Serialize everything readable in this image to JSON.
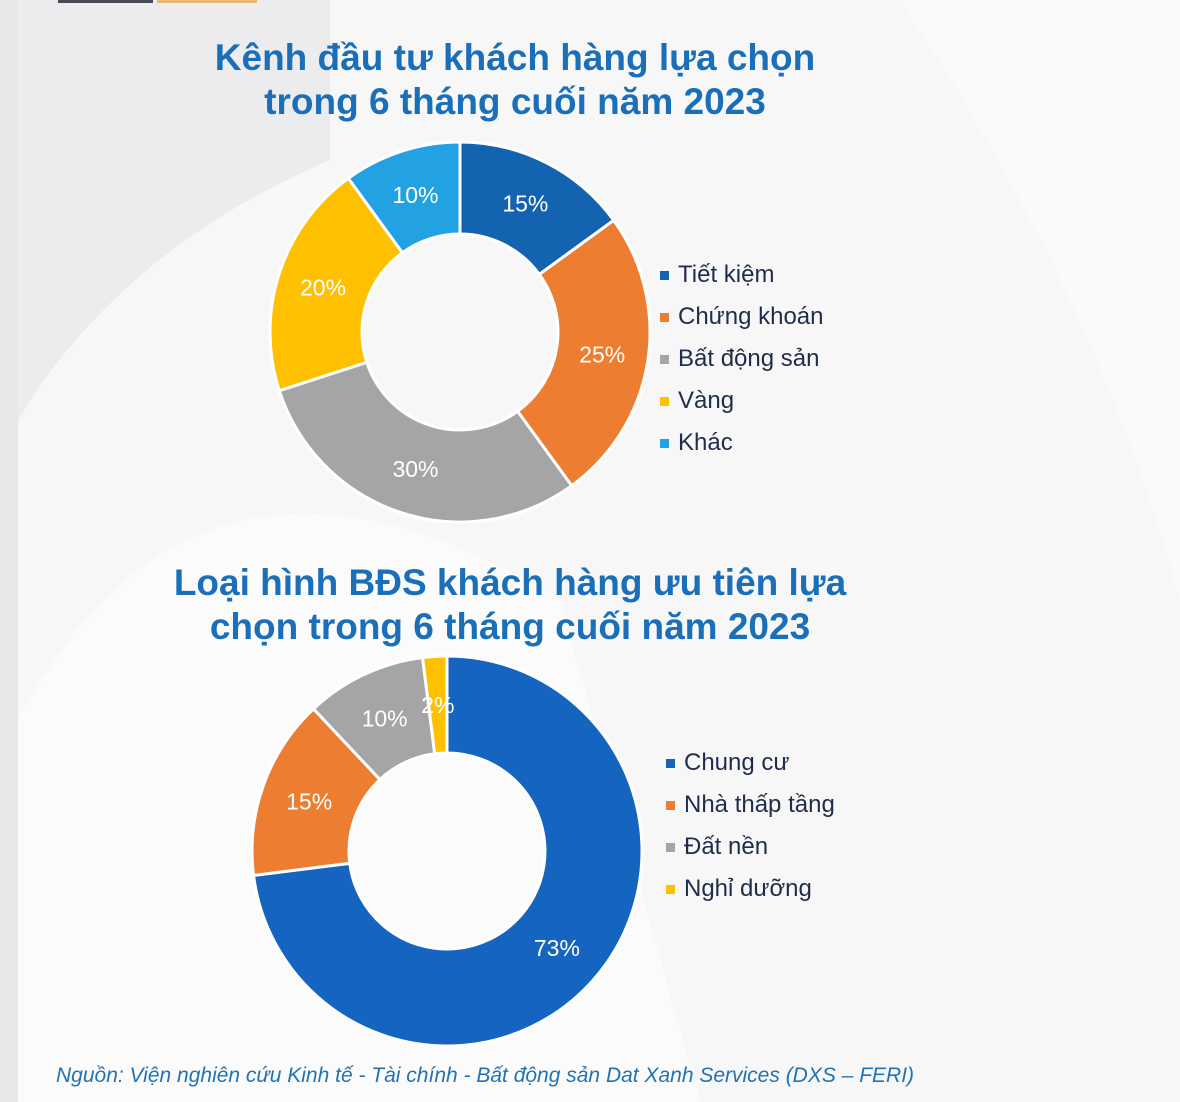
{
  "colors": {
    "blue": "#1463b0",
    "orange": "#ed7d31",
    "gray": "#a5a5a5",
    "yellow": "#ffc000",
    "lightblue": "#22a2e2",
    "title": "#1a6fb8"
  },
  "chart_data": [
    {
      "type": "pie",
      "donut": true,
      "title": "Kênh đầu tư khách hàng lựa chọn trong 6 tháng cuối năm 2023",
      "categories": [
        "Tiết kiệm",
        "Chứng khoán",
        "Bất động sản",
        "Vàng",
        "Khác"
      ],
      "values": [
        15,
        25,
        30,
        20,
        10
      ],
      "labels": [
        "15%",
        "25%",
        "30%",
        "20%",
        "10%"
      ],
      "colors": [
        "#1463b0",
        "#ed7d31",
        "#a5a5a5",
        "#ffc000",
        "#22a2e2"
      ],
      "legend": "right"
    },
    {
      "type": "pie",
      "donut": true,
      "title": "Loại hình BĐS khách hàng ưu tiên lựa chọn trong 6 tháng cuối năm 2023",
      "categories": [
        "Chung cư",
        "Nhà thấp tầng",
        "Đất nền",
        "Nghỉ dưỡng"
      ],
      "values": [
        73,
        15,
        10,
        2
      ],
      "labels": [
        "73%",
        "15%",
        "10%",
        "2%"
      ],
      "colors": [
        "#1565c0",
        "#ed7d31",
        "#a5a5a5",
        "#ffc000"
      ],
      "legend": "right"
    }
  ],
  "titles": {
    "t1_line1": "Kênh đầu tư khách hàng lựa chọn",
    "t1_line2": "trong 6 tháng cuối năm 2023",
    "t2_line1": "Loại hình BĐS khách hàng ưu tiên lựa",
    "t2_line2": "chọn trong 6 tháng cuối năm 2023"
  },
  "source": "Nguồn: Viện nghiên cứu Kinh tế - Tài chính - Bất động sản Dat Xanh Services (DXS – FERI)"
}
